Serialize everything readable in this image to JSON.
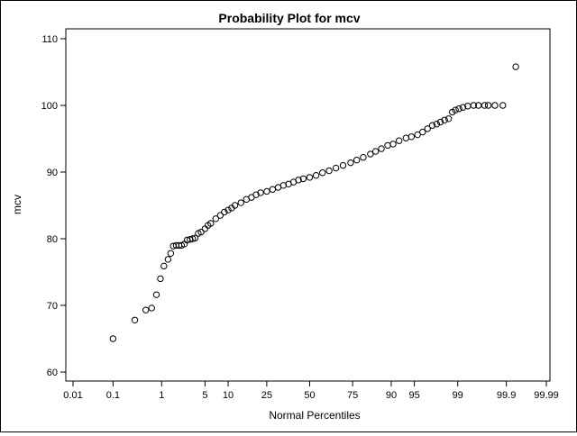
{
  "chart_data": {
    "type": "scatter",
    "title": "Probability Plot for mcv",
    "xlabel": "Normal Percentiles",
    "ylabel": "mcv",
    "x_scale": "normal-probability",
    "xlim": [
      0.01,
      99.99
    ],
    "ylim": [
      60,
      110
    ],
    "x_ticks": [
      0.01,
      0.1,
      1,
      5,
      10,
      25,
      50,
      75,
      90,
      95,
      99,
      99.9,
      99.99
    ],
    "x_tick_labels": [
      "0.01",
      "0.1",
      "1",
      "5",
      "10",
      "25",
      "50",
      "75",
      "90",
      "95",
      "99",
      "99.9",
      "99.99"
    ],
    "y_ticks": [
      60,
      70,
      80,
      90,
      100,
      110
    ],
    "y_tick_labels": [
      "60",
      "70",
      "80",
      "90",
      "100",
      "110"
    ],
    "grid": false,
    "legend": "none",
    "marker": "open-circle",
    "points": [
      [
        0.1,
        65.0
      ],
      [
        0.3,
        67.8
      ],
      [
        0.5,
        69.3
      ],
      [
        0.65,
        69.6
      ],
      [
        0.8,
        71.6
      ],
      [
        0.95,
        74.0
      ],
      [
        1.1,
        75.9
      ],
      [
        1.3,
        76.9
      ],
      [
        1.45,
        77.8
      ],
      [
        1.6,
        78.9
      ],
      [
        1.8,
        79.0
      ],
      [
        2.0,
        79.0
      ],
      [
        2.2,
        79.0
      ],
      [
        2.45,
        79.2
      ],
      [
        2.7,
        79.8
      ],
      [
        3.0,
        79.9
      ],
      [
        3.3,
        80.0
      ],
      [
        3.6,
        80.1
      ],
      [
        4.0,
        80.8
      ],
      [
        4.4,
        81.0
      ],
      [
        5,
        81.5
      ],
      [
        5.5,
        82.0
      ],
      [
        6,
        82.3
      ],
      [
        7,
        83.0
      ],
      [
        8,
        83.5
      ],
      [
        9,
        84.0
      ],
      [
        10,
        84.3
      ],
      [
        11,
        84.6
      ],
      [
        12,
        85.0
      ],
      [
        14,
        85.4
      ],
      [
        16,
        85.9
      ],
      [
        18,
        86.2
      ],
      [
        20,
        86.6
      ],
      [
        22,
        86.9
      ],
      [
        25,
        87.1
      ],
      [
        28,
        87.4
      ],
      [
        31,
        87.7
      ],
      [
        34,
        88.0
      ],
      [
        37,
        88.2
      ],
      [
        40,
        88.5
      ],
      [
        43,
        88.8
      ],
      [
        46,
        89.0
      ],
      [
        50,
        89.2
      ],
      [
        54,
        89.5
      ],
      [
        58,
        89.9
      ],
      [
        62,
        90.2
      ],
      [
        66,
        90.6
      ],
      [
        70,
        91.0
      ],
      [
        74,
        91.4
      ],
      [
        77,
        91.8
      ],
      [
        80,
        92.2
      ],
      [
        83,
        92.7
      ],
      [
        85,
        93.1
      ],
      [
        87,
        93.5
      ],
      [
        89,
        94.0
      ],
      [
        90.5,
        94.2
      ],
      [
        92,
        94.7
      ],
      [
        93.5,
        95.1
      ],
      [
        94.5,
        95.3
      ],
      [
        95.5,
        95.6
      ],
      [
        96.2,
        96.0
      ],
      [
        96.8,
        96.5
      ],
      [
        97.3,
        97.0
      ],
      [
        97.7,
        97.2
      ],
      [
        98.0,
        97.5
      ],
      [
        98.3,
        97.8
      ],
      [
        98.55,
        98.0
      ],
      [
        98.75,
        99.0
      ],
      [
        98.9,
        99.3
      ],
      [
        99.05,
        99.5
      ],
      [
        99.2,
        99.7
      ],
      [
        99.35,
        99.9
      ],
      [
        99.5,
        100.0
      ],
      [
        99.6,
        100.0
      ],
      [
        99.7,
        100.0
      ],
      [
        99.75,
        100.0
      ],
      [
        99.82,
        100.0
      ],
      [
        99.88,
        100.0
      ],
      [
        99.94,
        105.8
      ]
    ]
  }
}
